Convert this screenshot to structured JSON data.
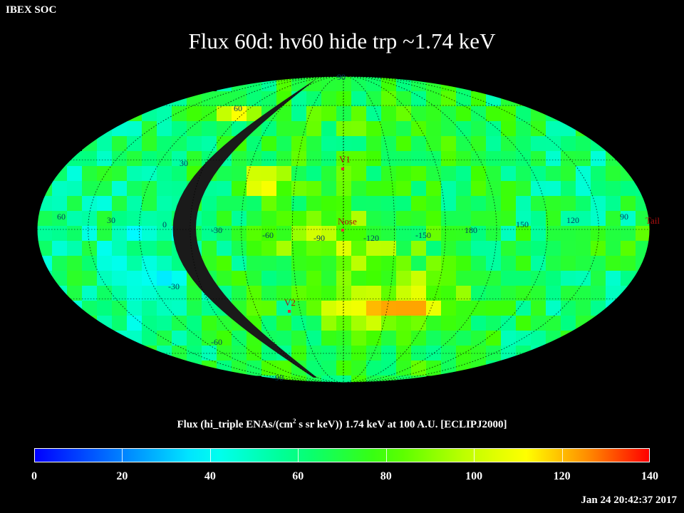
{
  "header": {
    "soc_label": "IBEX SOC",
    "title": "Flux   60d: hv60 hide trp ~1.74 keV"
  },
  "map": {
    "projection": "Mollweide",
    "frame": "ECLIPJ2000",
    "center_longitude": 90,
    "longitude_labels": [
      "60",
      "30",
      "0",
      "-30",
      "-60",
      "-90",
      "-120",
      "-150",
      "180",
      "150",
      "120",
      "90"
    ],
    "latitude_labels": [
      "90",
      "60",
      "30",
      "-30",
      "-60",
      "-90"
    ],
    "markers": [
      {
        "name": "V1",
        "color": "#e03030"
      },
      {
        "name": "Nose",
        "color": "#e03030"
      },
      {
        "name": "V2",
        "color": "#e03030"
      },
      {
        "name": "Tail",
        "color": "#e03030"
      }
    ],
    "grid": true
  },
  "colorbar": {
    "title_pre": "Flux (hi_triple ENAs/(cm",
    "title_sup": "2",
    "title_post": " s sr keV))  1.74 keV at 100 A.U. [ECLIPJ2000]",
    "min": 0,
    "max": 140,
    "tick_labels": [
      "0",
      "20",
      "40",
      "60",
      "80",
      "100",
      "120",
      "140"
    ]
  },
  "footer": {
    "timestamp": "Jan 24 20:42:37 2017"
  }
}
